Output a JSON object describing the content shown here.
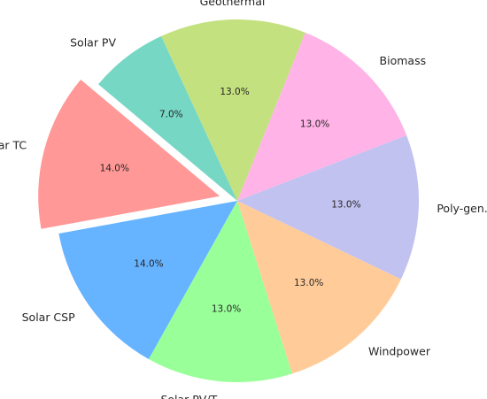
{
  "chart_data": {
    "type": "pie",
    "title": "",
    "categories": [
      "Solar TC",
      "Solar CSP",
      "Solar PV/T",
      "Windpower",
      "Poly-gen.",
      "Biomass",
      "Geothermal",
      "Solar PV"
    ],
    "values": [
      14.0,
      14.0,
      13.0,
      13.0,
      13.0,
      13.0,
      13.0,
      7.0
    ],
    "value_labels": [
      "14.0%",
      "14.0%",
      "13.0%",
      "13.0%",
      "13.0%",
      "13.0%",
      "13.0%",
      "7.0%"
    ],
    "colors": [
      "#ff9896",
      "#66b3ff",
      "#99ff99",
      "#ffcc99",
      "#c2c2f0",
      "#ffb3e6",
      "#c4e17f",
      "#76d7c4"
    ],
    "exploded": [
      "Solar TC"
    ],
    "start_angle_deg": 140,
    "direction": "counterclockwise",
    "legend": "none"
  }
}
